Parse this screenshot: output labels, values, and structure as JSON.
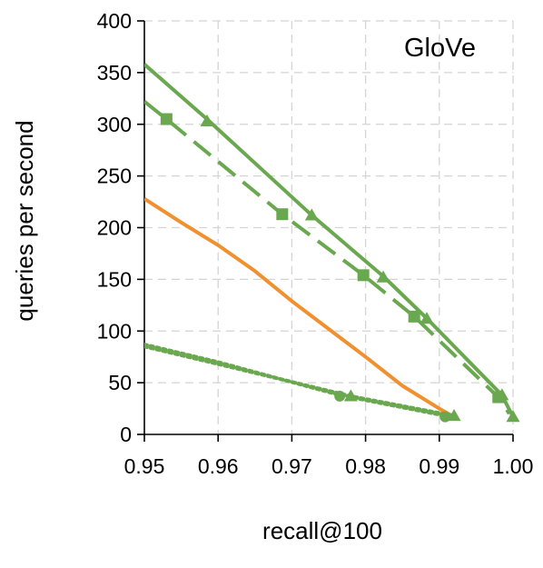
{
  "chart_data": {
    "type": "line",
    "title": "GloVe",
    "xlabel": "recall@100",
    "ylabel": "queries per second",
    "xlim": [
      0.95,
      1.0
    ],
    "ylim": [
      0,
      400
    ],
    "x_ticks": [
      "0.95",
      "0.96",
      "0.97",
      "0.98",
      "0.99",
      "1.00"
    ],
    "y_ticks": [
      "0",
      "50",
      "100",
      "150",
      "200",
      "250",
      "300",
      "350",
      "400"
    ],
    "grid": true,
    "legend": "none",
    "series": [
      {
        "style": "solid",
        "color": "#6aa84f",
        "marker": "none",
        "points": [
          [
            0.95,
            358
          ],
          [
            0.9585,
            305
          ],
          [
            0.9727,
            212
          ],
          [
            0.9824,
            153
          ],
          [
            0.9882,
            113
          ],
          [
            0.9985,
            38
          ],
          [
            1.0,
            17
          ]
        ],
        "marker_points": []
      },
      {
        "style": "solid",
        "color": "#6aa84f",
        "marker": "triangle",
        "points": [],
        "marker_points": [
          [
            0.9585,
            303
          ],
          [
            0.9727,
            212
          ],
          [
            0.9824,
            152
          ],
          [
            0.9883,
            112
          ],
          [
            0.9985,
            38
          ],
          [
            1.0,
            17
          ]
        ]
      },
      {
        "style": "long-dash",
        "color": "#6aa84f",
        "marker": "square",
        "points": [
          [
            0.95,
            322
          ],
          [
            0.953,
            305
          ],
          [
            0.9687,
            213
          ],
          [
            0.9797,
            154
          ],
          [
            0.9866,
            114
          ],
          [
            0.998,
            36
          ],
          [
            0.9995,
            20
          ]
        ],
        "marker_points": [
          [
            0.953,
            305
          ],
          [
            0.9687,
            213
          ],
          [
            0.9797,
            154
          ],
          [
            0.9866,
            114
          ],
          [
            0.998,
            36
          ]
        ]
      },
      {
        "style": "solid",
        "color": "#f0902e",
        "marker": "none",
        "points": [
          [
            0.95,
            228
          ],
          [
            0.955,
            205
          ],
          [
            0.96,
            183
          ],
          [
            0.965,
            158
          ],
          [
            0.97,
            129
          ],
          [
            0.975,
            102
          ],
          [
            0.98,
            75
          ],
          [
            0.985,
            47
          ],
          [
            0.99,
            25
          ],
          [
            0.992,
            17
          ]
        ],
        "marker_points": []
      },
      {
        "style": "dotted",
        "color": "#6aa84f",
        "marker": "circle",
        "points": [
          [
            0.95,
            87
          ],
          [
            0.96,
            70
          ],
          [
            0.9765,
            38
          ],
          [
            0.9908,
            18
          ],
          [
            0.992,
            17
          ]
        ],
        "marker_points": [
          [
            0.9765,
            37
          ],
          [
            0.9908,
            17
          ]
        ]
      },
      {
        "style": "dotted",
        "color": "#6aa84f",
        "marker": "triangle",
        "points": [
          [
            0.95,
            85
          ],
          [
            0.96,
            68
          ],
          [
            0.978,
            37
          ],
          [
            0.992,
            18
          ]
        ],
        "marker_points": [
          [
            0.978,
            37
          ],
          [
            0.992,
            18
          ]
        ]
      }
    ]
  }
}
